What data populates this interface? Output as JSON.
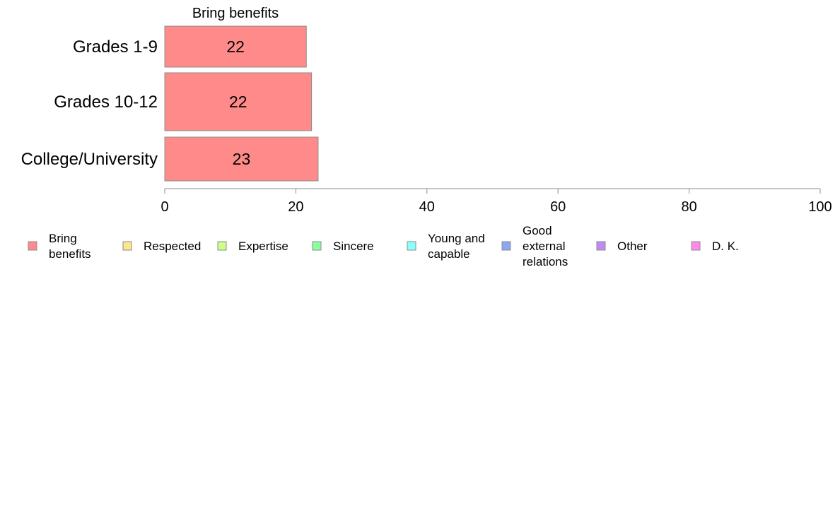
{
  "chart_data": {
    "type": "bar",
    "orientation": "horizontal",
    "title": "",
    "series_header": "Bring benefits",
    "categories": [
      "Grades 1-9",
      "Grades 10-12",
      "College/University"
    ],
    "series": [
      {
        "name": "Bring benefits",
        "values": [
          21.6,
          22.4,
          23.4
        ],
        "labels": [
          "22",
          "22",
          "23"
        ],
        "color": "#ff8a8a"
      }
    ],
    "xlim": [
      0,
      100
    ],
    "xticks": [
      "0",
      "20",
      "40",
      "60",
      "80",
      "100"
    ],
    "xlabel": "",
    "ylabel": "",
    "grid": false,
    "legend_position": "bottom",
    "legend": [
      {
        "name": "Bring benefits",
        "lines": [
          "Bring",
          "benefits"
        ],
        "color": "#ff8a8a"
      },
      {
        "name": "Respected",
        "lines": [
          "Respected"
        ],
        "color": "#ffe58a"
      },
      {
        "name": "Expertise",
        "lines": [
          "Expertise"
        ],
        "color": "#ccff8a"
      },
      {
        "name": "Sincere",
        "lines": [
          "Sincere"
        ],
        "color": "#8aff9e"
      },
      {
        "name": "Young and capable",
        "lines": [
          "Young and",
          "capable"
        ],
        "color": "#8affff"
      },
      {
        "name": "Good external relations",
        "lines": [
          "Good",
          "external",
          "relations"
        ],
        "color": "#8aa8f0"
      },
      {
        "name": "Other",
        "lines": [
          "Other"
        ],
        "color": "#c08af5"
      },
      {
        "name": "D. K.",
        "lines": [
          "D. K."
        ],
        "color": "#ff8ae8"
      }
    ]
  }
}
